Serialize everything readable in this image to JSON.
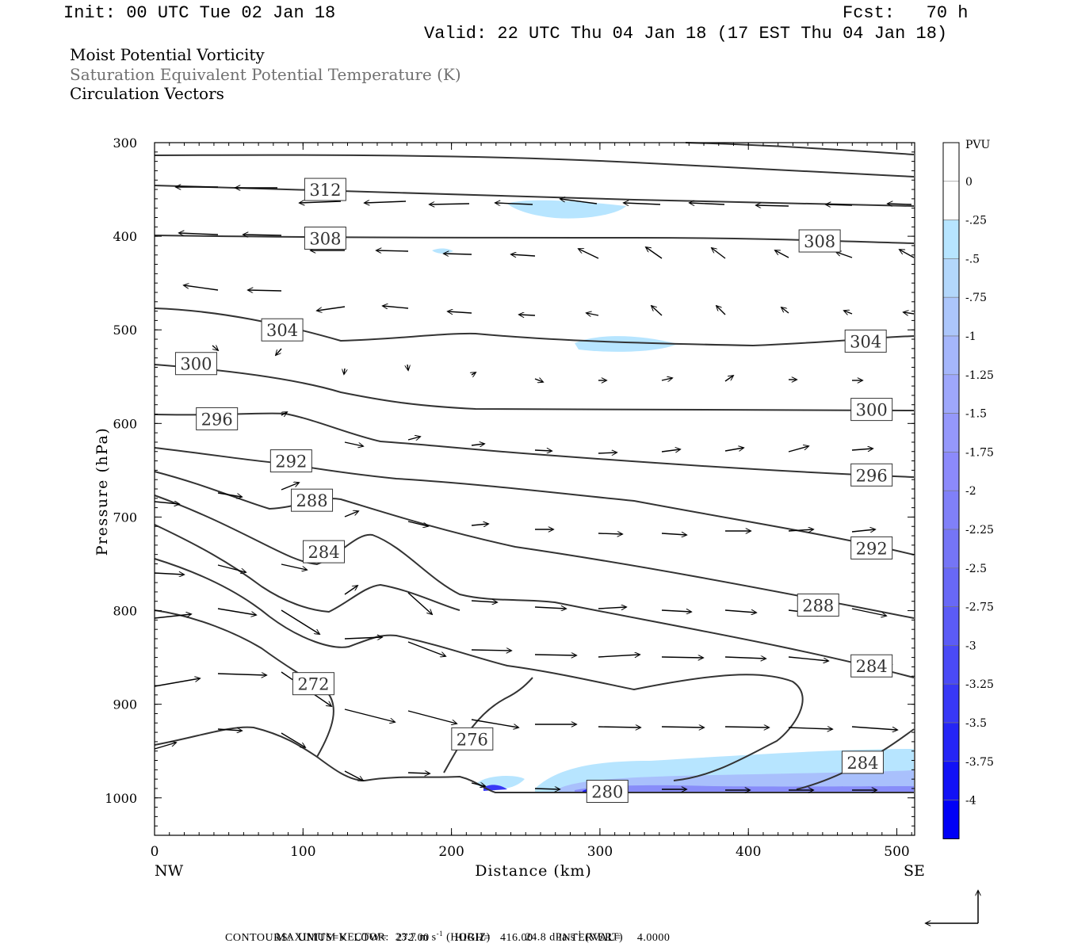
{
  "header": {
    "init": "Init: 00 UTC Tue 02 Jan 18",
    "fcst": "Fcst:   70 h",
    "valid": "Valid: 22 UTC Thu 04 Jan 18 (17 EST Thu 04 Jan 18)"
  },
  "fields": {
    "line1": "Moist Potential Vorticity",
    "line2": "Saturation Equivalent Potential Temperature (K)",
    "line3": "Circulation Vectors"
  },
  "chart_data": {
    "type": "cross-section",
    "xlabel": "Distance (km)",
    "ylabel": "Pressure (hPa)",
    "xlim": [
      0,
      512
    ],
    "ylim": [
      300,
      1040
    ],
    "y_scale": "linear, inverted (pressure increases downward)",
    "x_ticks": [
      "0",
      "100",
      "200",
      "300",
      "400",
      "500"
    ],
    "y_ticks": [
      "300",
      "400",
      "500",
      "600",
      "700",
      "800",
      "900",
      "1000"
    ],
    "x_end_labels": {
      "left": "NW",
      "right": "SE"
    },
    "contour_labels": [
      {
        "text": "312",
        "x": 115,
        "p": 350
      },
      {
        "text": "308",
        "x": 115,
        "p": 402
      },
      {
        "text": "308",
        "x": 448,
        "p": 405
      },
      {
        "text": "304",
        "x": 86,
        "p": 500
      },
      {
        "text": "304",
        "x": 479,
        "p": 512
      },
      {
        "text": "300",
        "x": 28,
        "p": 536
      },
      {
        "text": "300",
        "x": 483,
        "p": 585
      },
      {
        "text": "296",
        "x": 42,
        "p": 595
      },
      {
        "text": "296",
        "x": 483,
        "p": 655
      },
      {
        "text": "292",
        "x": 92,
        "p": 640
      },
      {
        "text": "292",
        "x": 483,
        "p": 733
      },
      {
        "text": "288",
        "x": 106,
        "p": 682
      },
      {
        "text": "288",
        "x": 447,
        "p": 794
      },
      {
        "text": "284",
        "x": 114,
        "p": 737
      },
      {
        "text": "284",
        "x": 483,
        "p": 859
      },
      {
        "text": "284",
        "x": 477,
        "p": 962
      },
      {
        "text": "272",
        "x": 107,
        "p": 878
      },
      {
        "text": "276",
        "x": 214,
        "p": 937
      },
      {
        "text": "280",
        "x": 305,
        "p": 993
      }
    ],
    "colorbar": {
      "unit": "PVU",
      "labels": [
        "0",
        "-.25",
        "-.5",
        "-.75",
        "-1",
        "-1.25",
        "-1.5",
        "-1.75",
        "-2",
        "-2.25",
        "-2.5",
        "-2.75",
        "-3",
        "-3.25",
        "-3.5",
        "-3.75",
        "-4"
      ],
      "colors": [
        "#ffffff",
        "#ffffff",
        "#b7e5ff",
        "#b3d7fb",
        "#acc6fb",
        "#a5b6fb",
        "#9ea7fb",
        "#9598fb",
        "#8c8afb",
        "#8080f8",
        "#7575f6",
        "#6868f6",
        "#5b5bf6",
        "#4a4af6",
        "#3838f6",
        "#2525f6",
        "#1212f6",
        "#0000f6"
      ]
    }
  },
  "footer": {
    "max_vector_label": "MAXIMUM VECTOR:",
    "horiz": "23.7 m s",
    "horiz_tag": "(HORIZ)",
    "vert": "24.8 dPa s",
    "vert_tag": "(VERT)",
    "exp": "-1",
    "contours": "CONTOURS:  UNITS=K  LOW=   272.00        HIGH=   416.00        INTERVAL=     4.0000"
  }
}
